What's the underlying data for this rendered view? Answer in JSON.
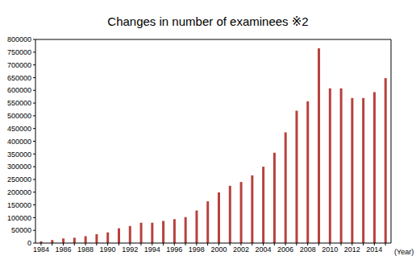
{
  "chart_data": {
    "type": "bar",
    "title": "Changes in number of examinees ※2",
    "x_label": "(Year)",
    "categories": [
      "1984",
      null,
      "1986",
      null,
      "1988",
      null,
      "1990",
      null,
      "1992",
      null,
      "1994",
      null,
      "1996",
      null,
      "1998",
      null,
      "2000",
      null,
      "2002",
      null,
      "2004",
      null,
      "2006",
      null,
      "2008",
      null,
      "2010",
      null,
      "2012",
      null,
      "2014",
      null
    ],
    "values": [
      7000,
      12000,
      18000,
      21000,
      27000,
      35000,
      42000,
      58000,
      67000,
      80000,
      80000,
      87000,
      94000,
      102000,
      128000,
      164000,
      199000,
      225000,
      240000,
      266000,
      300000,
      355000,
      435000,
      520000,
      557000,
      765000,
      608000,
      608000,
      570000,
      570000,
      593000,
      648000
    ],
    "color": "#b8413e",
    "ylim": [
      0,
      800000
    ],
    "yticks": [
      0,
      50000,
      100000,
      150000,
      200000,
      250000,
      300000,
      350000,
      400000,
      450000,
      500000,
      550000,
      600000,
      650000,
      700000,
      750000,
      800000
    ],
    "grid": false
  }
}
